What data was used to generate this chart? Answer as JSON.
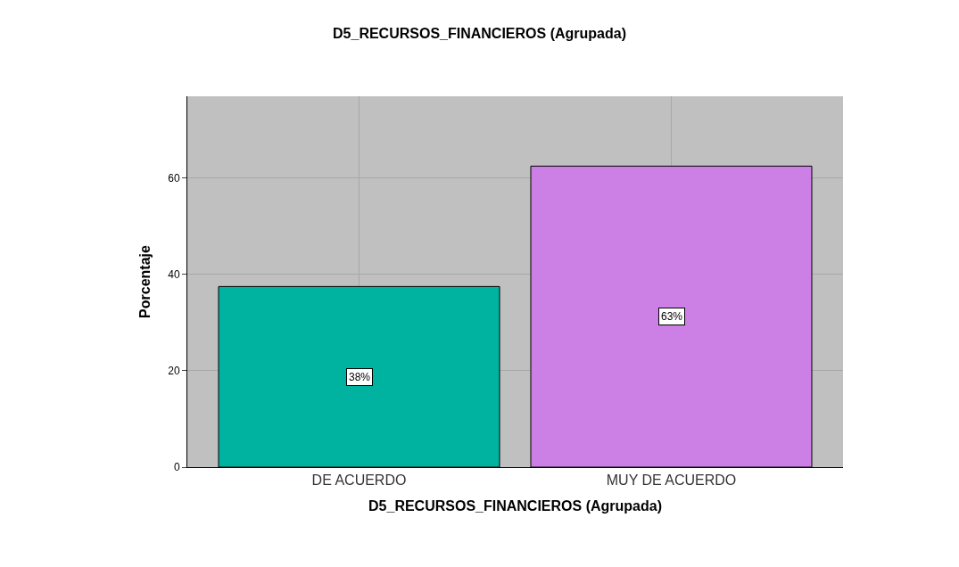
{
  "chart_data": {
    "type": "bar",
    "title": "D5_RECURSOS_FINANCIEROS (Agrupada)",
    "xlabel": "D5_RECURSOS_FINANCIEROS (Agrupada)",
    "ylabel": "Porcentaje",
    "categories": [
      "DE ACUERDO",
      "MUY DE ACUERDO"
    ],
    "values": [
      37.5,
      62.5
    ],
    "colors": [
      "#00b3a0",
      "#cc80e6"
    ],
    "value_labels": [
      "38%",
      "63%"
    ],
    "ylim": [
      0,
      77
    ],
    "yticks": [
      0,
      20,
      40,
      60
    ],
    "grid": true
  }
}
